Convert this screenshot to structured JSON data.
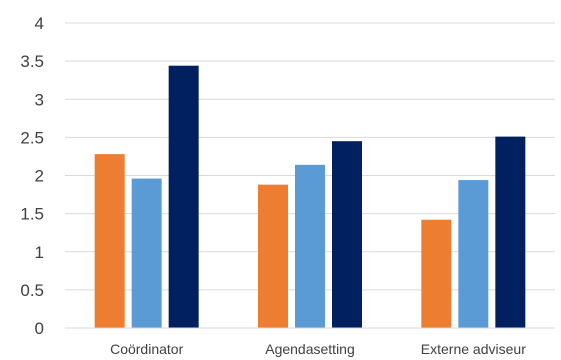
{
  "chart_data": {
    "type": "bar",
    "title": "",
    "xlabel": "",
    "ylabel": "",
    "categories": [
      "Coördinator",
      "Agendasetting",
      "Externe adviseur"
    ],
    "series": [
      {
        "color": "#ED7D31",
        "values": [
          2.28,
          1.88,
          1.42
        ]
      },
      {
        "color": "#5B9BD5",
        "values": [
          1.96,
          2.14,
          1.94
        ]
      },
      {
        "color": "#002060",
        "values": [
          3.44,
          2.45,
          2.51
        ]
      }
    ],
    "ylim": [
      0,
      4
    ],
    "yticks": [
      "0",
      "0.5",
      "1",
      "1.5",
      "2",
      "2.5",
      "3",
      "3.5",
      "4"
    ],
    "grid": true,
    "legend": "none"
  }
}
